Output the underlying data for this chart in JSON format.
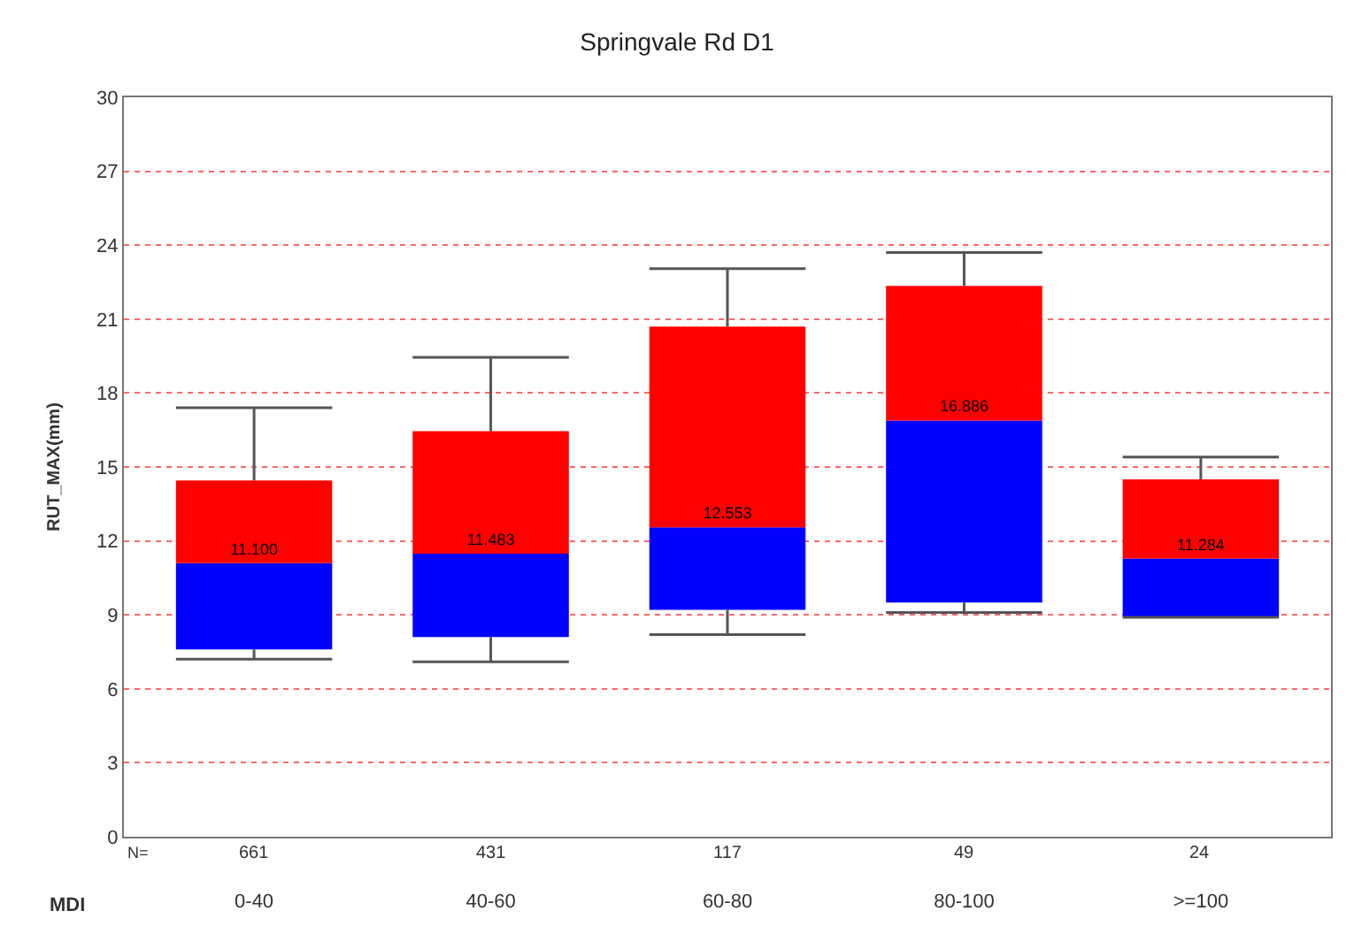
{
  "chart_data": {
    "type": "box",
    "title": "Springvale Rd D1",
    "xlabel": "MDI",
    "ylabel": "RUT_MAX(mm)",
    "categories": [
      "0-40",
      "40-60",
      "60-80",
      "80-100",
      ">=100"
    ],
    "value_labels": [
      "11.100",
      "11.483",
      "12.553",
      "16.886",
      "11.284"
    ],
    "series": [
      {
        "color": "#0000ff",
        "boxes": [
          {
            "low": 7.2,
            "q1": 7.6,
            "median": 11.1,
            "q3": 14.45,
            "high": 17.4
          },
          {
            "low": 7.1,
            "q1": 8.1,
            "median": 11.483,
            "q3": 16.45,
            "high": 19.45
          },
          {
            "low": 8.2,
            "q1": 9.2,
            "median": 12.553,
            "q3": 20.7,
            "high": 23.05
          },
          {
            "low": 9.1,
            "q1": 9.5,
            "median": 16.886,
            "q3": 22.35,
            "high": 23.7
          },
          {
            "low": 8.9,
            "q1": 8.9,
            "median": 11.284,
            "q3": 14.5,
            "high": 15.4
          }
        ]
      }
    ],
    "colors": [
      "#ff0000",
      "#ff0000",
      "#ff0000",
      "#ff0000",
      "#ff0000"
    ],
    "ylim": [
      0,
      30
    ],
    "yticks": [
      0,
      3,
      6,
      9,
      12,
      15,
      18,
      21,
      24,
      27,
      30
    ],
    "grid": "y",
    "annotations": [
      "N=",
      "661",
      "431",
      "117",
      "49",
      "24"
    ]
  }
}
